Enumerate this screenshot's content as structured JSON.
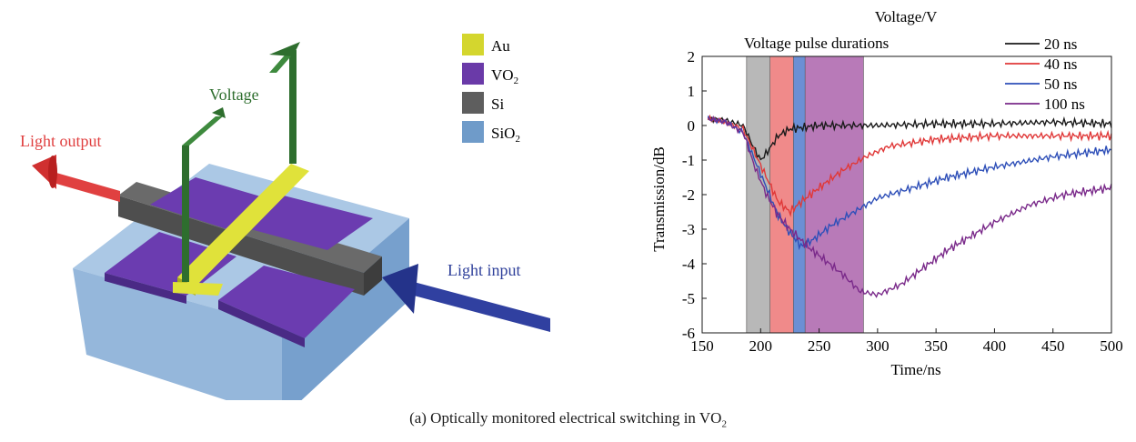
{
  "device": {
    "legend": [
      {
        "label": "Au",
        "sub": "",
        "color": "#d4d62e"
      },
      {
        "label": "VO",
        "sub": "2",
        "color": "#6a3aa8"
      },
      {
        "label": "Si",
        "sub": "",
        "color": "#5e5e5e"
      },
      {
        "label": "SiO",
        "sub": "2",
        "color": "#6f9bc9"
      }
    ],
    "labels": {
      "voltage": "Voltage",
      "light_output": "Light output",
      "light_input": "Light input"
    },
    "colors": {
      "voltage": "#2e6e2e",
      "light_output": "#e04040",
      "light_input": "#2e3f9a"
    }
  },
  "chart_data": {
    "type": "line",
    "top_label": "Voltage/V",
    "annotation": "Voltage pulse durations",
    "xlabel": "Time/ns",
    "ylabel": "Transmission/dB",
    "xlim": [
      150,
      500
    ],
    "ylim": [
      -6,
      2
    ],
    "xticks": [
      150,
      200,
      250,
      300,
      350,
      400,
      450,
      500
    ],
    "yticks": [
      2,
      1,
      0,
      -1,
      -2,
      -3,
      -4,
      -5,
      -6
    ],
    "grid": false,
    "legend_position": "top-right",
    "pulses": [
      {
        "name": "100 ns",
        "start": 188,
        "end": 288,
        "color": "#b87ab8"
      },
      {
        "name": "50 ns",
        "start": 188,
        "end": 238,
        "color": "#6b8fd4"
      },
      {
        "name": "40 ns",
        "start": 188,
        "end": 228,
        "color": "#f08a8a"
      },
      {
        "name": "20 ns",
        "start": 188,
        "end": 208,
        "color": "#b8b8b8"
      }
    ],
    "series": [
      {
        "name": "20 ns",
        "color": "#1a1a1a",
        "x": [
          155,
          170,
          185,
          195,
          200,
          205,
          215,
          225,
          250,
          300,
          350,
          400,
          450,
          500
        ],
        "y": [
          0.2,
          0.15,
          0.0,
          -0.7,
          -1.0,
          -0.8,
          -0.3,
          -0.1,
          0.0,
          0.0,
          0.05,
          0.05,
          0.1,
          0.05
        ]
      },
      {
        "name": "40 ns",
        "color": "#e03838",
        "x": [
          155,
          170,
          185,
          195,
          205,
          215,
          225,
          235,
          250,
          270,
          290,
          310,
          350,
          400,
          450,
          500
        ],
        "y": [
          0.2,
          0.1,
          -0.1,
          -0.8,
          -1.5,
          -2.2,
          -2.5,
          -2.2,
          -1.8,
          -1.3,
          -0.9,
          -0.6,
          -0.4,
          -0.3,
          -0.3,
          -0.3
        ]
      },
      {
        "name": "50 ns",
        "color": "#2e4fb8",
        "x": [
          155,
          170,
          185,
          195,
          205,
          215,
          225,
          235,
          245,
          260,
          280,
          300,
          330,
          360,
          400,
          450,
          500
        ],
        "y": [
          0.2,
          0.1,
          -0.2,
          -1.0,
          -1.8,
          -2.6,
          -3.1,
          -3.5,
          -3.3,
          -2.9,
          -2.5,
          -2.1,
          -1.8,
          -1.5,
          -1.2,
          -0.9,
          -0.7
        ]
      },
      {
        "name": "100 ns",
        "color": "#7a2a8a",
        "x": [
          155,
          170,
          185,
          195,
          205,
          215,
          225,
          240,
          255,
          270,
          285,
          300,
          320,
          340,
          360,
          380,
          400,
          430,
          460,
          500
        ],
        "y": [
          0.2,
          0.1,
          -0.2,
          -1.2,
          -2.0,
          -2.6,
          -3.0,
          -3.5,
          -3.9,
          -4.3,
          -4.8,
          -4.9,
          -4.6,
          -4.1,
          -3.6,
          -3.2,
          -2.8,
          -2.3,
          -2.0,
          -1.8
        ]
      }
    ]
  },
  "caption": {
    "text": "(a) Optically monitored electrical switching in VO",
    "sub": "2"
  }
}
